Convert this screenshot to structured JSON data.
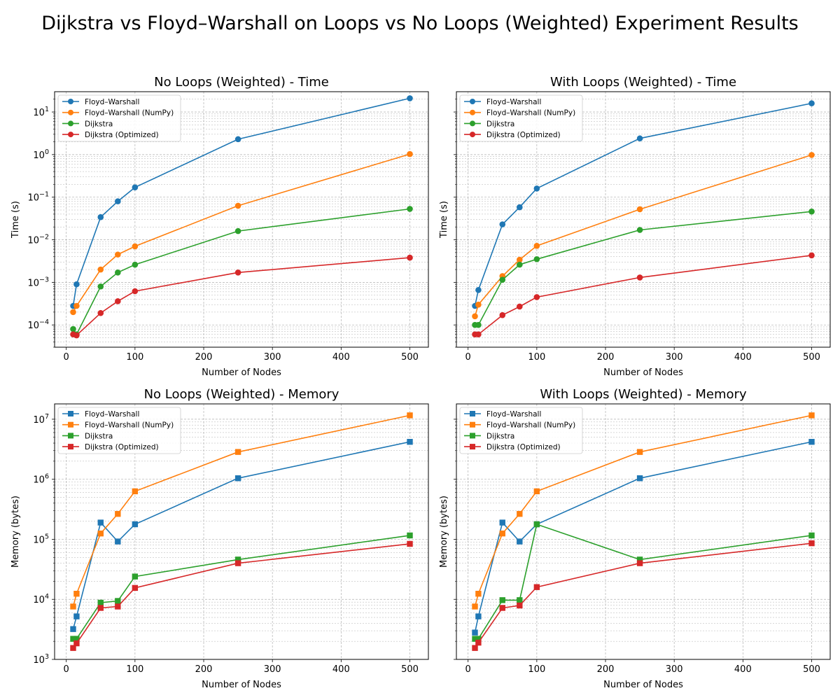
{
  "figure_title": "Dijkstra vs Floyd–Warshall on Loops vs No Loops (Weighted) Experiment Results",
  "chart_data": [
    {
      "type": "line",
      "title": "No Loops (Weighted) - Time",
      "xlabel": "Number of Nodes",
      "ylabel": "Time (s)",
      "yscale": "log",
      "marker": "circle",
      "xlim": [
        -17,
        527
      ],
      "ylim": [
        3e-05,
        30
      ],
      "xticks": [
        0,
        100,
        200,
        300,
        400,
        500
      ],
      "yticks": [
        {
          "v": 0.0001,
          "m": "10",
          "e": "−4"
        },
        {
          "v": 0.001,
          "m": "10",
          "e": "−3"
        },
        {
          "v": 0.01,
          "m": "10",
          "e": "−2"
        },
        {
          "v": 0.1,
          "m": "10",
          "e": "−1"
        },
        {
          "v": 1,
          "m": "10",
          "e": "0"
        },
        {
          "v": 10,
          "m": "10",
          "e": "1"
        }
      ],
      "show_ytick_labels": true,
      "grid": true,
      "legend": "upper-left",
      "x": [
        10,
        15,
        50,
        75,
        100,
        250,
        500
      ],
      "series": [
        {
          "name": "Floyd–Warshall",
          "color": "#1f77b4",
          "values": [
            0.00028,
            0.0009,
            0.034,
            0.08,
            0.17,
            2.3,
            21
          ]
        },
        {
          "name": "Floyd–Warshall (NumPy)",
          "color": "#ff7f0e",
          "values": [
            0.0002,
            0.00028,
            0.002,
            0.0045,
            0.007,
            0.063,
            1.03
          ]
        },
        {
          "name": "Dijkstra",
          "color": "#2ca02c",
          "values": [
            8e-05,
            6e-05,
            0.0008,
            0.0017,
            0.0026,
            0.016,
            0.053
          ]
        },
        {
          "name": "Dijkstra (Optimized)",
          "color": "#d62728",
          "values": [
            6e-05,
            5.7e-05,
            0.00019,
            0.00036,
            0.00062,
            0.0017,
            0.0038
          ]
        }
      ]
    },
    {
      "type": "line",
      "title": "With Loops (Weighted) - Time",
      "xlabel": "Number of Nodes",
      "ylabel": "Time (s)",
      "yscale": "log",
      "marker": "circle",
      "xlim": [
        -17,
        527
      ],
      "ylim": [
        3e-05,
        30
      ],
      "xticks": [
        0,
        100,
        200,
        300,
        400,
        500
      ],
      "yticks": [
        {
          "v": 0.0001
        },
        {
          "v": 0.001
        },
        {
          "v": 0.01
        },
        {
          "v": 0.1
        },
        {
          "v": 1
        },
        {
          "v": 10
        }
      ],
      "show_ytick_labels": false,
      "grid": true,
      "legend": "upper-left",
      "x": [
        10,
        15,
        50,
        75,
        100,
        250,
        500
      ],
      "series": [
        {
          "name": "Floyd–Warshall",
          "color": "#1f77b4",
          "values": [
            0.00028,
            0.00066,
            0.023,
            0.058,
            0.16,
            2.4,
            16
          ]
        },
        {
          "name": "Floyd–Warshall (NumPy)",
          "color": "#ff7f0e",
          "values": [
            0.00016,
            0.0003,
            0.0014,
            0.0034,
            0.0072,
            0.052,
            0.98
          ]
        },
        {
          "name": "Dijkstra",
          "color": "#2ca02c",
          "values": [
            0.0001,
            0.0001,
            0.00115,
            0.0026,
            0.0035,
            0.017,
            0.046
          ]
        },
        {
          "name": "Dijkstra (Optimized)",
          "color": "#d62728",
          "values": [
            6e-05,
            6e-05,
            0.00017,
            0.00027,
            0.00045,
            0.0013,
            0.0043
          ]
        }
      ]
    },
    {
      "type": "line",
      "title": "No Loops (Weighted) - Memory",
      "xlabel": "Number of Nodes",
      "ylabel": "Memory (bytes)",
      "yscale": "log",
      "marker": "square",
      "xlim": [
        -17,
        527
      ],
      "ylim": [
        1000,
        18000000
      ],
      "xticks": [
        0,
        100,
        200,
        300,
        400,
        500
      ],
      "yticks": [
        {
          "v": 1000,
          "m": "10",
          "e": "3"
        },
        {
          "v": 10000,
          "m": "10",
          "e": "4"
        },
        {
          "v": 100000,
          "m": "10",
          "e": "5"
        },
        {
          "v": 1000000,
          "m": "10",
          "e": "6"
        },
        {
          "v": 10000000,
          "m": "10",
          "e": "7"
        }
      ],
      "show_ytick_labels": true,
      "grid": true,
      "legend": "upper-left",
      "x": [
        10,
        15,
        50,
        75,
        100,
        250,
        500
      ],
      "series": [
        {
          "name": "Floyd–Warshall",
          "color": "#1f77b4",
          "values": [
            3200,
            5200,
            190000,
            92000,
            178000,
            1040000,
            4200000
          ]
        },
        {
          "name": "Floyd–Warshall (NumPy)",
          "color": "#ff7f0e",
          "values": [
            7600,
            12400,
            125000,
            265000,
            630000,
            2850000,
            11600000
          ]
        },
        {
          "name": "Dijkstra",
          "color": "#2ca02c",
          "values": [
            2200,
            2200,
            8800,
            9400,
            24000,
            46000,
            116000
          ]
        },
        {
          "name": "Dijkstra (Optimized)",
          "color": "#d62728",
          "values": [
            1550,
            1850,
            7200,
            7600,
            15500,
            40000,
            84000
          ]
        }
      ]
    },
    {
      "type": "line",
      "title": "With Loops (Weighted) - Memory",
      "xlabel": "Number of Nodes",
      "ylabel": "Memory (bytes)",
      "yscale": "log",
      "marker": "square",
      "xlim": [
        -17,
        527
      ],
      "ylim": [
        1000,
        18000000
      ],
      "xticks": [
        0,
        100,
        200,
        300,
        400,
        500
      ],
      "yticks": [
        {
          "v": 1000
        },
        {
          "v": 10000
        },
        {
          "v": 100000
        },
        {
          "v": 1000000
        },
        {
          "v": 10000000
        }
      ],
      "show_ytick_labels": false,
      "grid": true,
      "legend": "upper-left",
      "x": [
        10,
        15,
        50,
        75,
        100,
        250,
        500
      ],
      "series": [
        {
          "name": "Floyd–Warshall",
          "color": "#1f77b4",
          "values": [
            2800,
            5200,
            190000,
            92000,
            178000,
            1040000,
            4200000
          ]
        },
        {
          "name": "Floyd–Warshall (NumPy)",
          "color": "#ff7f0e",
          "values": [
            7600,
            12400,
            125000,
            265000,
            630000,
            2850000,
            11600000
          ]
        },
        {
          "name": "Dijkstra",
          "color": "#2ca02c",
          "values": [
            2200,
            2200,
            9700,
            9700,
            178000,
            46000,
            116000
          ]
        },
        {
          "name": "Dijkstra (Optimized)",
          "color": "#d62728",
          "values": [
            1550,
            1900,
            7200,
            7900,
            16000,
            40000,
            86000
          ]
        }
      ]
    }
  ]
}
